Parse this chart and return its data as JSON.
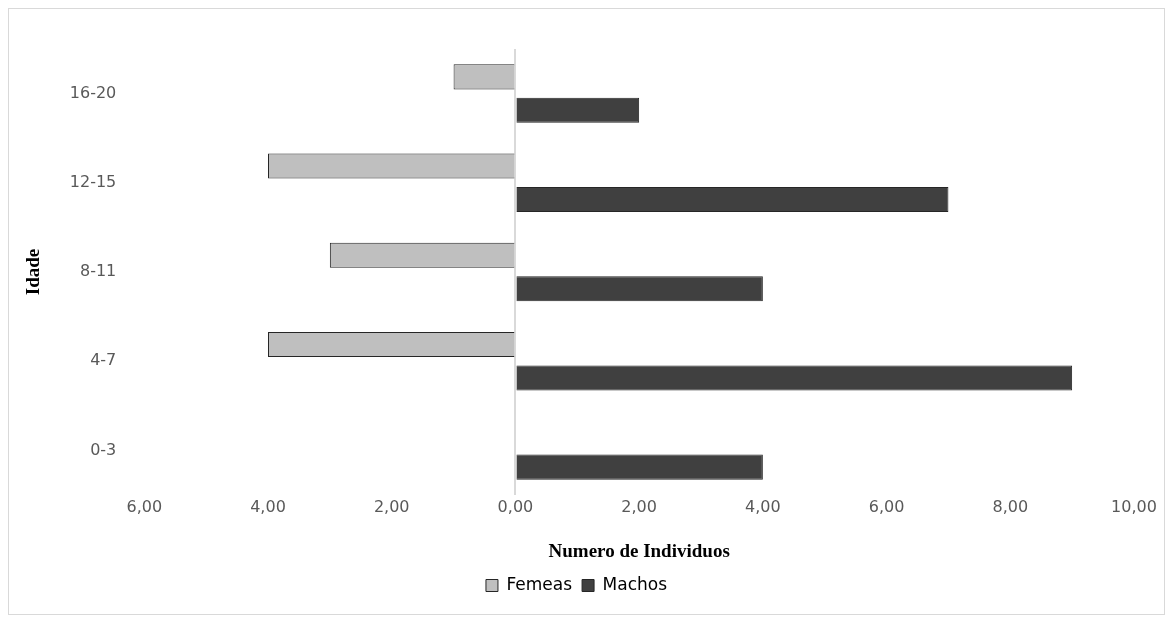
{
  "chart_data": {
    "type": "bar",
    "orientation": "horizontal",
    "xlabel": "Numero de Individuos",
    "ylabel": "Idade",
    "categories": [
      "16-20",
      "12-15",
      "8-11",
      "4-7",
      "0-3"
    ],
    "series": [
      {
        "name": "Femeas",
        "color": "#bfbfbf",
        "values": [
          -1,
          -4,
          -3,
          -4,
          0
        ]
      },
      {
        "name": "Machos",
        "color": "#404040",
        "values": [
          2,
          7,
          4,
          9,
          4
        ]
      }
    ],
    "xlim": [
      -6,
      10
    ],
    "xticks": [
      {
        "value": -6,
        "label": "6,00"
      },
      {
        "value": -4,
        "label": "4,00"
      },
      {
        "value": -2,
        "label": "2,00"
      },
      {
        "value": 0,
        "label": "0,00"
      },
      {
        "value": 2,
        "label": "2,00"
      },
      {
        "value": 4,
        "label": "4,00"
      },
      {
        "value": 6,
        "label": "6,00"
      },
      {
        "value": 8,
        "label": "8,00"
      },
      {
        "value": 10,
        "label": "10,00"
      }
    ],
    "legend": "bottom"
  }
}
